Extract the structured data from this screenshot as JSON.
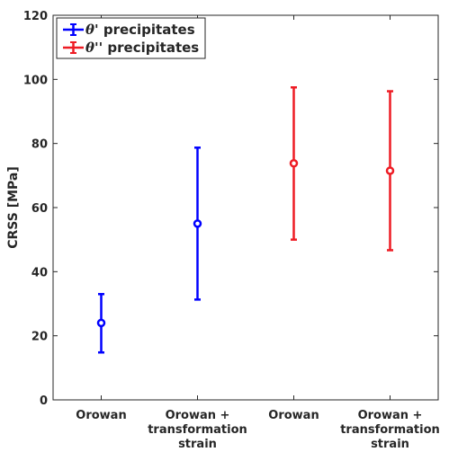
{
  "chart_data": {
    "type": "scatter",
    "title": "",
    "xlabel": "",
    "ylabel": "CRSS [MPa]",
    "ylim": [
      0,
      120
    ],
    "yticks": [
      0,
      20,
      40,
      60,
      80,
      100,
      120
    ],
    "grid": false,
    "legend_position": "top-left",
    "categories": [
      [
        "Orowan"
      ],
      [
        "Orowan +",
        "transformation",
        "strain"
      ],
      [
        "Orowan"
      ],
      [
        "Orowan +",
        "transformation",
        "strain"
      ]
    ],
    "series": [
      {
        "name_symbol": "θ'",
        "name_text": "precipitates",
        "color": "#0000ff",
        "points": [
          {
            "x": 1,
            "y": 24,
            "low": 14.8,
            "high": 33
          },
          {
            "x": 2,
            "y": 55,
            "low": 31.3,
            "high": 78.7
          }
        ]
      },
      {
        "name_symbol": "θ''",
        "name_text": "precipitates",
        "color": "#ee1c24",
        "points": [
          {
            "x": 3,
            "y": 73.8,
            "low": 50,
            "high": 97.5
          },
          {
            "x": 4,
            "y": 71.5,
            "low": 46.7,
            "high": 96.3
          }
        ]
      }
    ]
  }
}
